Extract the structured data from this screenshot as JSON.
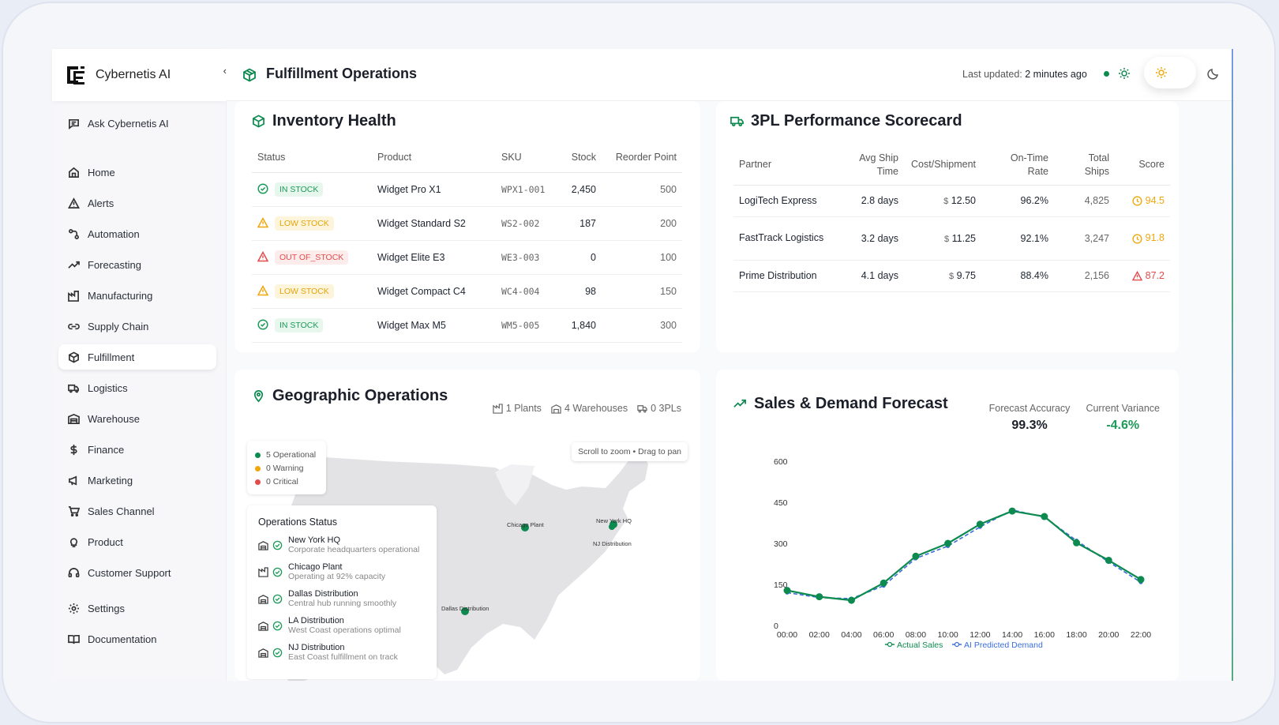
{
  "brand": {
    "name": "Cybernetis AI",
    "collapse": "‹"
  },
  "nav": {
    "ask": "Ask Cybernetis AI",
    "items": [
      {
        "label": "Home",
        "icon": "home-icon"
      },
      {
        "label": "Alerts",
        "icon": "alert-icon"
      },
      {
        "label": "Automation",
        "icon": "automation-icon"
      },
      {
        "label": "Forecasting",
        "icon": "trend-icon"
      },
      {
        "label": "Manufacturing",
        "icon": "factory-icon"
      },
      {
        "label": "Supply Chain",
        "icon": "link-icon"
      },
      {
        "label": "Fulfillment",
        "icon": "package-icon"
      },
      {
        "label": "Logistics",
        "icon": "truck-icon"
      },
      {
        "label": "Warehouse",
        "icon": "warehouse-icon"
      },
      {
        "label": "Finance",
        "icon": "dollar-icon"
      },
      {
        "label": "Marketing",
        "icon": "megaphone-icon"
      },
      {
        "label": "Sales Channel",
        "icon": "cart-icon"
      },
      {
        "label": "Product",
        "icon": "bulb-icon"
      },
      {
        "label": "Customer Support",
        "icon": "headset-icon"
      },
      {
        "label": "Settings",
        "icon": "gear-icon"
      },
      {
        "label": "Documentation",
        "icon": "book-icon"
      }
    ]
  },
  "header": {
    "title": "Fulfillment Operations",
    "updated_label": "Last updated:",
    "updated_value": "2 minutes ago"
  },
  "inventory": {
    "title": "Inventory Health",
    "columns": [
      "Status",
      "Product",
      "SKU",
      "Stock",
      "Reorder Point"
    ],
    "rows": [
      {
        "status": "IN STOCK",
        "kind": "in",
        "product": "Widget Pro X1",
        "sku": "WPX1-001",
        "stock": "2,450",
        "reorder": "500"
      },
      {
        "status": "LOW STOCK",
        "kind": "low",
        "product": "Widget Standard S2",
        "sku": "WS2-002",
        "stock": "187",
        "reorder": "200"
      },
      {
        "status": "OUT OF_STOCK",
        "kind": "out",
        "product": "Widget Elite E3",
        "sku": "WE3-003",
        "stock": "0",
        "reorder": "100"
      },
      {
        "status": "LOW STOCK",
        "kind": "low",
        "product": "Widget Compact C4",
        "sku": "WC4-004",
        "stock": "98",
        "reorder": "150"
      },
      {
        "status": "IN STOCK",
        "kind": "in",
        "product": "Widget Max M5",
        "sku": "WM5-005",
        "stock": "1,840",
        "reorder": "300"
      }
    ]
  },
  "scorecard": {
    "title": "3PL Performance Scorecard",
    "columns": {
      "partner": "Partner",
      "ship1": "Avg Ship",
      "ship2": "Time",
      "cost": "Cost/Shipment",
      "otr1": "On-Time",
      "otr2": "Rate",
      "tot1": "Total",
      "tot2": "Ships",
      "score": "Score"
    },
    "rows": [
      {
        "partner": "LogiTech Express",
        "ship": "2.8 days",
        "cur": "$",
        "cost": "12.50",
        "otr": "96.2%",
        "total": "4,825",
        "score": "94.5",
        "level": "warn"
      },
      {
        "partner": "FastTrack Logistics",
        "ship": "3.2 days",
        "cur": "$",
        "cost": "11.25",
        "otr": "92.1%",
        "total": "3,247",
        "score": "91.8",
        "level": "warn"
      },
      {
        "partner": "Prime Distribution",
        "ship": "4.1 days",
        "cur": "$",
        "cost": "9.75",
        "otr": "88.4%",
        "total": "2,156",
        "score": "87.2",
        "level": "bad"
      }
    ]
  },
  "geo": {
    "title": "Geographic Operations",
    "plants": "1 Plants",
    "warehouses": "4 Warehouses",
    "threepls": "0 3PLs",
    "legend": {
      "operational": "5 Operational",
      "warning": "0 Warning",
      "critical": "0 Critical"
    },
    "hint": "Scroll to zoom • Drag to pan",
    "status_title": "Operations Status",
    "sites": [
      {
        "name": "New York HQ",
        "desc": "Corporate headquarters operational",
        "icon": "building-icon"
      },
      {
        "name": "Chicago Plant",
        "desc": "Operating at 92% capacity",
        "icon": "factory-icon"
      },
      {
        "name": "Dallas Distribution",
        "desc": "Central hub running smoothly",
        "icon": "building-icon"
      },
      {
        "name": "LA Distribution",
        "desc": "West Coast operations optimal",
        "icon": "building-icon"
      },
      {
        "name": "NJ Distribution",
        "desc": "East Coast fulfillment on track",
        "icon": "building-icon"
      }
    ],
    "map_labels": {
      "chicago": "Chicago Plant",
      "newyork": "New York HQ",
      "nj": "NJ Distribution",
      "dallas": "Dallas Distribution"
    }
  },
  "forecast": {
    "title": "Sales & Demand Forecast",
    "accuracy_label": "Forecast Accuracy",
    "accuracy_value": "99.3%",
    "variance_label": "Current Variance",
    "variance_value": "-4.6%"
  },
  "colors": {
    "green": "#0d8a4f",
    "blue": "#3a6ddf",
    "amber": "#f0a70a",
    "red": "#e34b4b"
  },
  "chart_data": {
    "type": "line",
    "title": "Sales & Demand Forecast",
    "x": [
      "00:00",
      "02:00",
      "04:00",
      "06:00",
      "08:00",
      "10:00",
      "12:00",
      "14:00",
      "16:00",
      "18:00",
      "20:00",
      "22:00"
    ],
    "ylim": [
      0,
      600
    ],
    "yticks": [
      "600",
      "450",
      "300",
      "150",
      "0"
    ],
    "series": [
      {
        "name": "Actual Sales",
        "values": [
          128,
          105,
          92,
          155,
          253,
          300,
          370,
          418,
          398,
          302,
          238,
          168
        ]
      },
      {
        "name": "AI Predicted Demand",
        "values": [
          120,
          102,
          98,
          145,
          245,
          290,
          360,
          422,
          396,
          310,
          232,
          158
        ]
      }
    ],
    "legend": "bottom"
  }
}
